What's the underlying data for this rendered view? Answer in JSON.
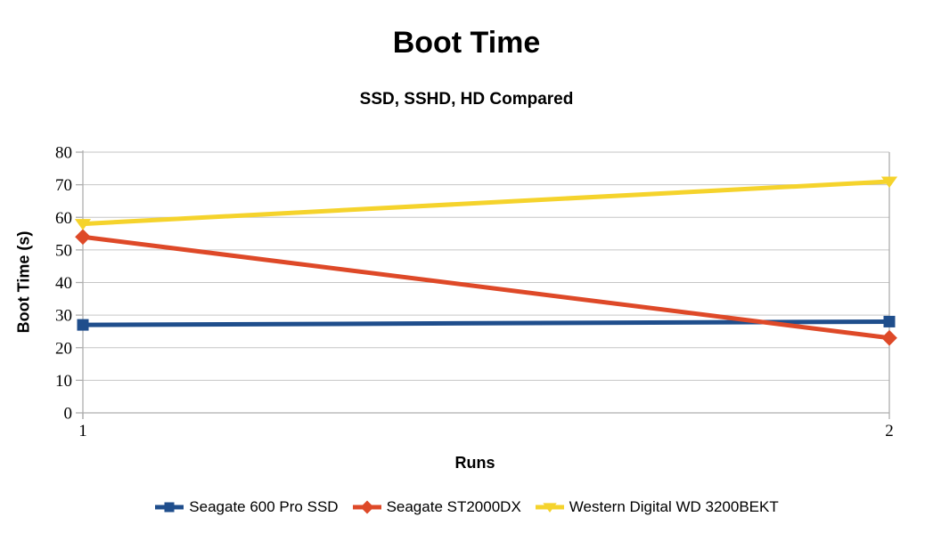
{
  "chart_data": {
    "type": "line",
    "title": "Boot Time",
    "subtitle": "SSD, SSHD, HD Compared",
    "xlabel": "Runs",
    "ylabel": "Boot Time (s)",
    "x": [
      1,
      2
    ],
    "xlim": [
      1,
      2
    ],
    "ylim": [
      0,
      80
    ],
    "yticks": [
      0,
      10,
      20,
      30,
      40,
      50,
      60,
      70,
      80
    ],
    "xticks": [
      1,
      2
    ],
    "grid": true,
    "legend_position": "bottom",
    "series": [
      {
        "name": "Seagate 600 Pro SSD",
        "marker": "square",
        "color": "#1F4E8C",
        "values": [
          27,
          28
        ]
      },
      {
        "name": "Seagate ST2000DX",
        "marker": "diamond",
        "color": "#DE4928",
        "values": [
          54,
          23
        ]
      },
      {
        "name": "Western Digital WD 3200BEKT",
        "marker": "triangle-down",
        "color": "#F5D32C",
        "values": [
          58,
          71
        ]
      }
    ]
  },
  "style": {
    "grid_color": "#C6C6C6",
    "axis_color": "#ADADAD",
    "text_color": "#000000",
    "background": "#FFFFFF"
  }
}
